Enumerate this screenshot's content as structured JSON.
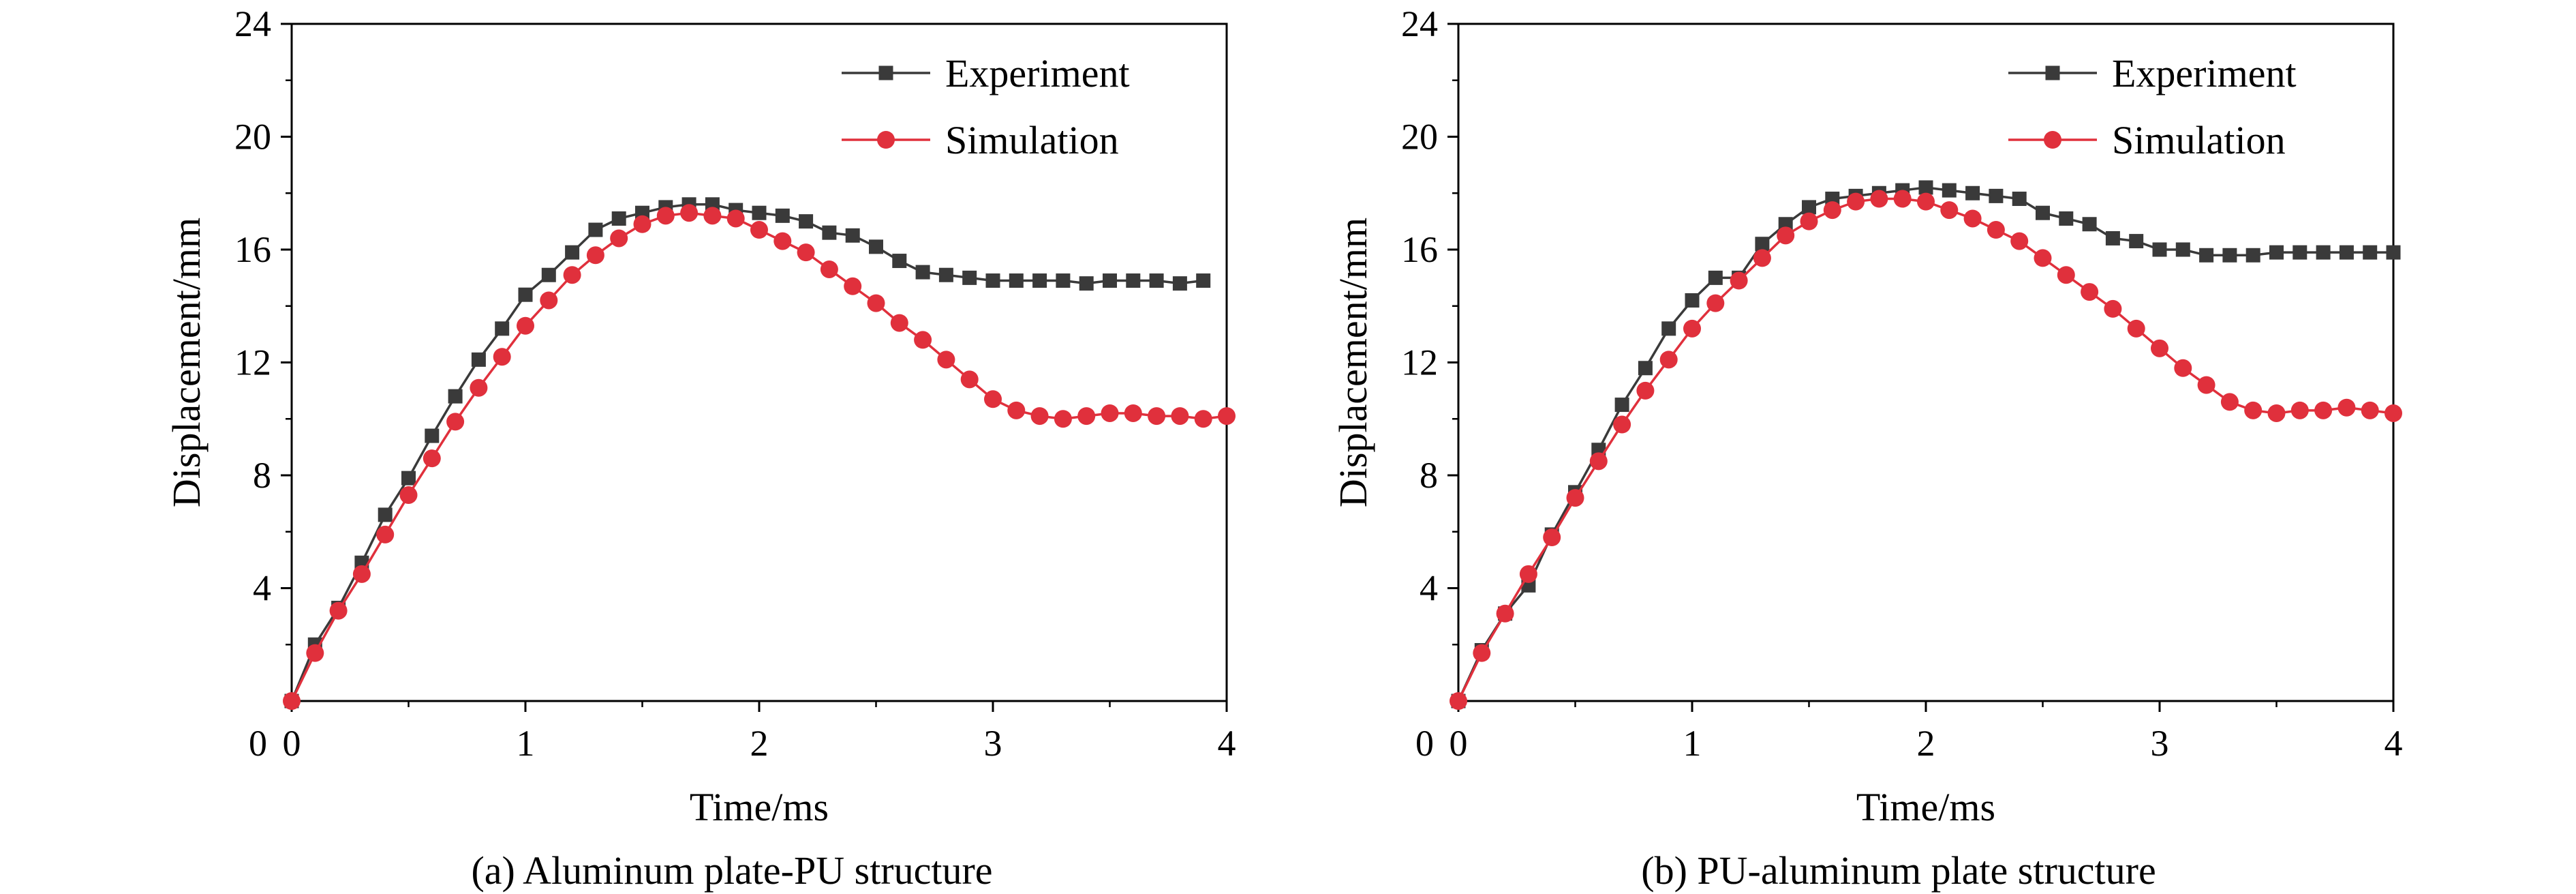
{
  "figure": {
    "colors": {
      "experiment": "#3a3a3a",
      "simulation": "#e0303c",
      "axis": "#000000"
    }
  },
  "chart_data": [
    {
      "type": "line",
      "caption": "(a) Aluminum plate-PU structure",
      "xlabel": "Time/ms",
      "ylabel": "Displacement/mm",
      "xlim": [
        0,
        4
      ],
      "ylim": [
        0,
        24
      ],
      "xticks": [
        0,
        1,
        2,
        3,
        4
      ],
      "yticks": [
        4,
        8,
        12,
        16,
        20,
        24
      ],
      "y_origin_label": "0",
      "legend_position": "top-right",
      "grid": false,
      "series": [
        {
          "name": "Experiment",
          "marker": "square",
          "x": [
            0.0,
            0.1,
            0.2,
            0.3,
            0.4,
            0.5,
            0.6,
            0.7,
            0.8,
            0.9,
            1.0,
            1.1,
            1.2,
            1.3,
            1.4,
            1.5,
            1.6,
            1.7,
            1.8,
            1.9,
            2.0,
            2.1,
            2.2,
            2.3,
            2.4,
            2.5,
            2.6,
            2.7,
            2.8,
            2.9,
            3.0,
            3.1,
            3.2,
            3.3,
            3.4,
            3.5,
            3.6,
            3.7,
            3.8,
            3.9
          ],
          "y": [
            0.0,
            2.0,
            3.3,
            4.9,
            6.6,
            7.9,
            9.4,
            10.8,
            12.1,
            13.2,
            14.4,
            15.1,
            15.9,
            16.7,
            17.1,
            17.3,
            17.5,
            17.6,
            17.6,
            17.4,
            17.3,
            17.2,
            17.0,
            16.6,
            16.5,
            16.1,
            15.6,
            15.2,
            15.1,
            15.0,
            14.9,
            14.9,
            14.9,
            14.9,
            14.8,
            14.9,
            14.9,
            14.9,
            14.8,
            14.9
          ]
        },
        {
          "name": "Simulation",
          "marker": "circle",
          "x": [
            0.0,
            0.1,
            0.2,
            0.3,
            0.4,
            0.5,
            0.6,
            0.7,
            0.8,
            0.9,
            1.0,
            1.1,
            1.2,
            1.3,
            1.4,
            1.5,
            1.6,
            1.7,
            1.8,
            1.9,
            2.0,
            2.1,
            2.2,
            2.3,
            2.4,
            2.5,
            2.6,
            2.7,
            2.8,
            2.9,
            3.0,
            3.1,
            3.2,
            3.3,
            3.4,
            3.5,
            3.6,
            3.7,
            3.8,
            3.9,
            4.0
          ],
          "y": [
            0.0,
            1.7,
            3.2,
            4.5,
            5.9,
            7.3,
            8.6,
            9.9,
            11.1,
            12.2,
            13.3,
            14.2,
            15.1,
            15.8,
            16.4,
            16.9,
            17.2,
            17.3,
            17.2,
            17.1,
            16.7,
            16.3,
            15.9,
            15.3,
            14.7,
            14.1,
            13.4,
            12.8,
            12.1,
            11.4,
            10.7,
            10.3,
            10.1,
            10.0,
            10.1,
            10.2,
            10.2,
            10.1,
            10.1,
            10.0,
            10.1
          ]
        }
      ]
    },
    {
      "type": "line",
      "caption": "(b) PU-aluminum plate structure",
      "xlabel": "Time/ms",
      "ylabel": "Displacement/mm",
      "xlim": [
        0,
        4
      ],
      "ylim": [
        0,
        24
      ],
      "xticks": [
        0,
        1,
        2,
        3,
        4
      ],
      "yticks": [
        4,
        8,
        12,
        16,
        20,
        24
      ],
      "y_origin_label": "0",
      "legend_position": "top-right",
      "grid": false,
      "series": [
        {
          "name": "Experiment",
          "marker": "square",
          "x": [
            0.0,
            0.1,
            0.2,
            0.3,
            0.4,
            0.5,
            0.6,
            0.7,
            0.8,
            0.9,
            1.0,
            1.1,
            1.2,
            1.3,
            1.4,
            1.5,
            1.6,
            1.7,
            1.8,
            1.9,
            2.0,
            2.1,
            2.2,
            2.3,
            2.4,
            2.5,
            2.6,
            2.7,
            2.8,
            2.9,
            3.0,
            3.1,
            3.2,
            3.3,
            3.4,
            3.5,
            3.6,
            3.7,
            3.8,
            3.9,
            4.0
          ],
          "y": [
            0.0,
            1.8,
            3.1,
            4.1,
            5.9,
            7.4,
            8.9,
            10.5,
            11.8,
            13.2,
            14.2,
            15.0,
            15.0,
            16.2,
            16.9,
            17.5,
            17.8,
            17.9,
            18.0,
            18.1,
            18.2,
            18.1,
            18.0,
            17.9,
            17.8,
            17.3,
            17.1,
            16.9,
            16.4,
            16.3,
            16.0,
            16.0,
            15.8,
            15.8,
            15.8,
            15.9,
            15.9,
            15.9,
            15.9,
            15.9,
            15.9
          ]
        },
        {
          "name": "Simulation",
          "marker": "circle",
          "x": [
            0.0,
            0.1,
            0.2,
            0.3,
            0.4,
            0.5,
            0.6,
            0.7,
            0.8,
            0.9,
            1.0,
            1.1,
            1.2,
            1.3,
            1.4,
            1.5,
            1.6,
            1.7,
            1.8,
            1.9,
            2.0,
            2.1,
            2.2,
            2.3,
            2.4,
            2.5,
            2.6,
            2.7,
            2.8,
            2.9,
            3.0,
            3.1,
            3.2,
            3.3,
            3.4,
            3.5,
            3.6,
            3.7,
            3.8,
            3.9,
            4.0
          ],
          "y": [
            0.0,
            1.7,
            3.1,
            4.5,
            5.8,
            7.2,
            8.5,
            9.8,
            11.0,
            12.1,
            13.2,
            14.1,
            14.9,
            15.7,
            16.5,
            17.0,
            17.4,
            17.7,
            17.8,
            17.8,
            17.7,
            17.4,
            17.1,
            16.7,
            16.3,
            15.7,
            15.1,
            14.5,
            13.9,
            13.2,
            12.5,
            11.8,
            11.2,
            10.6,
            10.3,
            10.2,
            10.3,
            10.3,
            10.4,
            10.3,
            10.2
          ]
        }
      ]
    }
  ]
}
